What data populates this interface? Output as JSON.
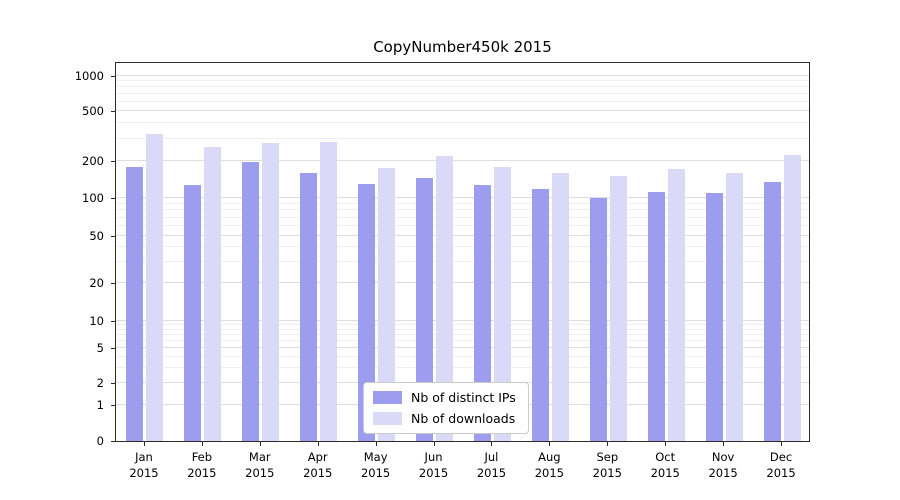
{
  "chart_data": {
    "type": "bar",
    "title": "CopyNumber450k 2015",
    "categories": [
      "Jan",
      "Feb",
      "Mar",
      "Apr",
      "May",
      "Jun",
      "Jul",
      "Aug",
      "Sep",
      "Oct",
      "Nov",
      "Dec"
    ],
    "category_year": "2015",
    "series": [
      {
        "name": "Nb of distinct IPs",
        "color": "#9d9df0",
        "values": [
          180,
          128,
          197,
          160,
          130,
          145,
          128,
          118,
          100,
          112,
          110,
          135
        ]
      },
      {
        "name": "Nb of downloads",
        "color": "#dadaf8",
        "values": [
          330,
          260,
          280,
          285,
          175,
          220,
          178,
          160,
          152,
          172,
          160,
          225
        ]
      }
    ],
    "y_ticks": [
      0,
      1,
      2,
      5,
      10,
      20,
      50,
      100,
      200,
      500,
      1000
    ],
    "y_scale": "symlog",
    "xlabel": "",
    "ylabel": "",
    "grid": true,
    "legend_position": "lower center"
  }
}
